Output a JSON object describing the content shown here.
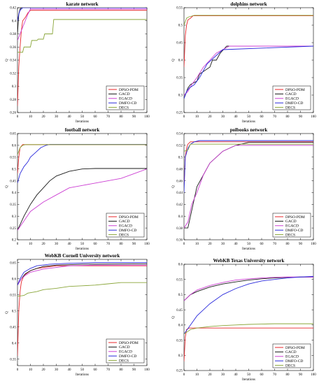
{
  "colors": {
    "DPSO-PDM": "#e8242a",
    "GACD": "#1a1a1a",
    "EGACD": "#cc3fd3",
    "DMFO-CD": "#2a2adc",
    "DECS": "#8aa63a"
  },
  "chart_data": [
    {
      "type": "line",
      "title": "karate network",
      "xlabel": "Iterations",
      "ylabel": "Q",
      "xlim": [
        0,
        100
      ],
      "ylim": [
        0.26,
        0.42
      ],
      "xticks": [
        0,
        10,
        20,
        30,
        40,
        50,
        60,
        70,
        80,
        90,
        100
      ],
      "yticks": [
        0.26,
        0.28,
        0.3,
        0.32,
        0.34,
        0.36,
        0.38,
        0.4,
        0.42
      ],
      "ytick_labels": [
        "0.26",
        "0.28",
        "0.3",
        "0.32",
        "0.34",
        "0.36",
        "0.38",
        "0.4",
        "0.42"
      ],
      "legend_position": "bottom-right",
      "series": [
        {
          "name": "DPSO-PDM",
          "x": [
            0,
            1,
            2,
            3,
            4,
            6,
            8,
            10,
            100
          ],
          "y": [
            0.27,
            0.33,
            0.36,
            0.385,
            0.4,
            0.405,
            0.412,
            0.416,
            0.416
          ]
        },
        {
          "name": "GACD",
          "x": [
            0,
            1,
            2,
            3,
            100
          ],
          "y": [
            0.38,
            0.41,
            0.418,
            0.42,
            0.42
          ]
        },
        {
          "name": "EGACD",
          "x": [
            0,
            2,
            4,
            6,
            8,
            10,
            100
          ],
          "y": [
            0.37,
            0.38,
            0.39,
            0.4,
            0.41,
            0.418,
            0.418
          ]
        },
        {
          "name": "DMFO-CD",
          "x": [
            0,
            1,
            2,
            4,
            100
          ],
          "y": [
            0.4,
            0.41,
            0.416,
            0.42,
            0.42
          ]
        },
        {
          "name": "DECS",
          "x": [
            0,
            4,
            5,
            10,
            11,
            15,
            16,
            20,
            21,
            27,
            28,
            100
          ],
          "y": [
            0.352,
            0.352,
            0.36,
            0.36,
            0.37,
            0.37,
            0.372,
            0.372,
            0.38,
            0.38,
            0.402,
            0.402
          ]
        }
      ]
    },
    {
      "type": "line",
      "title": "dolphins network",
      "xlabel": "Iterations",
      "ylabel": "Q",
      "xlim": [
        0,
        100
      ],
      "ylim": [
        0.25,
        0.55
      ],
      "xticks": [
        0,
        10,
        20,
        30,
        40,
        50,
        60,
        70,
        80,
        90,
        100
      ],
      "yticks": [
        0.25,
        0.3,
        0.35,
        0.4,
        0.45,
        0.5,
        0.55
      ],
      "ytick_labels": [
        "0.25",
        "0.3",
        "0.35",
        "0.4",
        "0.45",
        "0.5",
        "0.55"
      ],
      "legend_position": "bottom-right",
      "series": [
        {
          "name": "DPSO-PDM",
          "x": [
            0,
            1,
            2,
            3,
            5,
            7,
            100
          ],
          "y": [
            0.38,
            0.47,
            0.5,
            0.515,
            0.52,
            0.527,
            0.527
          ]
        },
        {
          "name": "GACD",
          "x": [
            0,
            3,
            5,
            10,
            12,
            20,
            22,
            25,
            28,
            33,
            100
          ],
          "y": [
            0.29,
            0.32,
            0.33,
            0.34,
            0.36,
            0.38,
            0.4,
            0.4,
            0.42,
            0.44,
            0.44
          ]
        },
        {
          "name": "EGACD",
          "x": [
            0,
            3,
            6,
            10,
            15,
            20,
            25,
            30,
            35,
            100
          ],
          "y": [
            0.3,
            0.31,
            0.33,
            0.35,
            0.38,
            0.4,
            0.42,
            0.43,
            0.44,
            0.44
          ]
        },
        {
          "name": "DMFO-CD",
          "x": [
            0,
            2,
            4,
            8,
            12,
            18,
            24,
            30,
            100
          ],
          "y": [
            0.29,
            0.31,
            0.32,
            0.33,
            0.35,
            0.39,
            0.41,
            0.43,
            0.44
          ]
        },
        {
          "name": "DECS",
          "x": [
            0,
            2,
            4,
            6,
            8,
            100
          ],
          "y": [
            0.5,
            0.52,
            0.524,
            0.526,
            0.528,
            0.528
          ]
        }
      ]
    },
    {
      "type": "line",
      "title": "football network",
      "xlabel": "Iterations",
      "ylabel": "Q",
      "xlim": [
        0,
        100
      ],
      "ylim": [
        0.2,
        0.65
      ],
      "xticks": [
        0,
        10,
        20,
        30,
        40,
        50,
        60,
        70,
        80,
        90,
        100
      ],
      "yticks": [
        0.2,
        0.25,
        0.3,
        0.35,
        0.4,
        0.45,
        0.5,
        0.55,
        0.6,
        0.65
      ],
      "ytick_labels": [
        "0.2",
        "0.25",
        "0.3",
        "0.35",
        "0.4",
        "0.45",
        "0.5",
        "0.55",
        "0.6",
        "0.65"
      ],
      "legend_position": "bottom-right",
      "series": [
        {
          "name": "DPSO-PDM",
          "x": [
            0,
            1,
            2,
            4,
            100
          ],
          "y": [
            0.48,
            0.55,
            0.59,
            0.603,
            0.603
          ]
        },
        {
          "name": "GACD",
          "x": [
            0,
            5,
            10,
            15,
            20,
            25,
            30,
            35,
            40,
            50,
            60,
            100
          ],
          "y": [
            0.24,
            0.3,
            0.35,
            0.39,
            0.42,
            0.45,
            0.47,
            0.48,
            0.49,
            0.5,
            0.502,
            0.502
          ]
        },
        {
          "name": "EGACD",
          "x": [
            0,
            5,
            10,
            20,
            30,
            40,
            50,
            60,
            70,
            80,
            90,
            100
          ],
          "y": [
            0.24,
            0.28,
            0.32,
            0.36,
            0.39,
            0.42,
            0.43,
            0.44,
            0.45,
            0.46,
            0.48,
            0.5
          ]
        },
        {
          "name": "DMFO-CD",
          "x": [
            0,
            2,
            5,
            8,
            10,
            14,
            18,
            22,
            25,
            100
          ],
          "y": [
            0.44,
            0.48,
            0.51,
            0.53,
            0.55,
            0.57,
            0.59,
            0.6,
            0.604,
            0.604
          ]
        },
        {
          "name": "DECS",
          "x": [
            0,
            2,
            4,
            6,
            100
          ],
          "y": [
            0.56,
            0.59,
            0.6,
            0.603,
            0.603
          ]
        }
      ]
    },
    {
      "type": "line",
      "title": "polbooks network",
      "xlabel": "Iterations",
      "ylabel": "Q",
      "xlim": [
        0,
        100
      ],
      "ylim": [
        0.36,
        0.54
      ],
      "xticks": [
        0,
        10,
        20,
        30,
        40,
        50,
        60,
        70,
        80,
        90,
        100
      ],
      "yticks": [
        0.36,
        0.38,
        0.4,
        0.42,
        0.44,
        0.46,
        0.48,
        0.5,
        0.52,
        0.54
      ],
      "ytick_labels": [
        "0.36",
        "0.38",
        "0.4",
        "0.42",
        "0.44",
        "0.46",
        "0.48",
        "0.5",
        "0.52",
        "0.54"
      ],
      "legend_position": "bottom-right",
      "series": [
        {
          "name": "DPSO-PDM",
          "x": [
            0,
            1,
            2,
            3,
            5,
            100
          ],
          "y": [
            0.45,
            0.5,
            0.515,
            0.522,
            0.526,
            0.526
          ]
        },
        {
          "name": "GACD",
          "x": [
            0,
            3,
            5,
            8,
            10,
            15,
            20,
            25,
            30,
            40,
            50,
            100
          ],
          "y": [
            0.38,
            0.38,
            0.4,
            0.43,
            0.45,
            0.47,
            0.49,
            0.5,
            0.51,
            0.52,
            0.525,
            0.525
          ]
        },
        {
          "name": "EGACD",
          "x": [
            0,
            3,
            6,
            10,
            15,
            20,
            25,
            30,
            40,
            100
          ],
          "y": [
            0.38,
            0.39,
            0.42,
            0.44,
            0.47,
            0.49,
            0.5,
            0.51,
            0.52,
            0.52
          ]
        },
        {
          "name": "DMFO-CD",
          "x": [
            0,
            1,
            3,
            5,
            8,
            12,
            100
          ],
          "y": [
            0.44,
            0.5,
            0.515,
            0.522,
            0.526,
            0.528,
            0.528
          ]
        },
        {
          "name": "DECS",
          "x": [
            0,
            3,
            5,
            100
          ],
          "y": [
            0.51,
            0.512,
            0.522,
            0.522
          ]
        }
      ]
    },
    {
      "type": "line",
      "title": "WebKB Cornell University network",
      "xlabel": "Iterations",
      "ylabel": "Q",
      "xlim": [
        0,
        100
      ],
      "ylim": [
        0.33,
        0.66
      ],
      "xticks": [
        0,
        10,
        20,
        30,
        40,
        50,
        60,
        70,
        80,
        90,
        100
      ],
      "yticks": [
        0.35,
        0.4,
        0.45,
        0.5,
        0.55,
        0.6,
        0.65
      ],
      "ytick_labels": [
        "0.35",
        "0.4",
        "0.45",
        "0.5",
        "0.55",
        "0.6",
        "0.65"
      ],
      "legend_position": "bottom-right",
      "series": [
        {
          "name": "DPSO-PDM",
          "x": [
            0,
            1,
            2,
            3,
            5,
            10,
            15,
            30,
            100
          ],
          "y": [
            0.36,
            0.5,
            0.56,
            0.59,
            0.61,
            0.625,
            0.632,
            0.64,
            0.64
          ]
        },
        {
          "name": "GACD",
          "x": [
            0,
            3,
            6,
            10,
            15,
            20,
            30,
            50,
            100
          ],
          "y": [
            0.58,
            0.6,
            0.615,
            0.625,
            0.632,
            0.638,
            0.642,
            0.645,
            0.646
          ]
        },
        {
          "name": "EGACD",
          "x": [
            0,
            3,
            6,
            10,
            20,
            30,
            40,
            60,
            100
          ],
          "y": [
            0.58,
            0.6,
            0.61,
            0.62,
            0.63,
            0.635,
            0.64,
            0.642,
            0.642
          ]
        },
        {
          "name": "DMFO-CD",
          "x": [
            0,
            2,
            5,
            10,
            15,
            25,
            40,
            60,
            100
          ],
          "y": [
            0.58,
            0.6,
            0.62,
            0.632,
            0.64,
            0.645,
            0.648,
            0.65,
            0.65
          ]
        },
        {
          "name": "DECS",
          "x": [
            0,
            5,
            8,
            15,
            20,
            30,
            40,
            50,
            60,
            70,
            80,
            90,
            100
          ],
          "y": [
            0.545,
            0.548,
            0.555,
            0.56,
            0.566,
            0.57,
            0.576,
            0.578,
            0.58,
            0.584,
            0.588,
            0.588,
            0.588
          ]
        }
      ]
    },
    {
      "type": "line",
      "title": "WebKB Texas University network",
      "xlabel": "Iterations",
      "ylabel": "Q",
      "xlim": [
        0,
        100
      ],
      "ylim": [
        0.25,
        0.6
      ],
      "xticks": [
        0,
        10,
        20,
        30,
        40,
        50,
        60,
        70,
        80,
        90,
        100
      ],
      "yticks": [
        0.25,
        0.3,
        0.35,
        0.4,
        0.45,
        0.5,
        0.55,
        0.6
      ],
      "ytick_labels": [
        "0.25",
        "0.3",
        "0.35",
        "0.4",
        "0.45",
        "0.5",
        "0.55",
        "0.6"
      ],
      "legend_position": "bottom-right",
      "series": [
        {
          "name": "DPSO-PDM",
          "x": [
            0,
            1,
            2,
            4,
            100
          ],
          "y": [
            0.28,
            0.36,
            0.385,
            0.39,
            0.39
          ]
        },
        {
          "name": "GACD",
          "x": [
            0,
            5,
            10,
            20,
            30,
            40,
            50,
            60,
            70,
            80,
            90,
            100
          ],
          "y": [
            0.48,
            0.5,
            0.51,
            0.525,
            0.535,
            0.542,
            0.548,
            0.552,
            0.555,
            0.557,
            0.558,
            0.558
          ]
        },
        {
          "name": "EGACD",
          "x": [
            0,
            5,
            10,
            20,
            30,
            40,
            50,
            60,
            70,
            80,
            100
          ],
          "y": [
            0.48,
            0.5,
            0.515,
            0.53,
            0.54,
            0.548,
            0.552,
            0.555,
            0.557,
            0.558,
            0.558
          ]
        },
        {
          "name": "DMFO-CD",
          "x": [
            0,
            5,
            10,
            20,
            30,
            40,
            50,
            60,
            70,
            80,
            90,
            100
          ],
          "y": [
            0.37,
            0.4,
            0.43,
            0.47,
            0.5,
            0.52,
            0.535,
            0.545,
            0.55,
            0.555,
            0.558,
            0.56
          ]
        },
        {
          "name": "DECS",
          "x": [
            0,
            5,
            10,
            20,
            30,
            40,
            50,
            60,
            70,
            100
          ],
          "y": [
            0.37,
            0.385,
            0.39,
            0.395,
            0.398,
            0.4,
            0.402,
            0.403,
            0.404,
            0.404
          ]
        }
      ]
    }
  ]
}
